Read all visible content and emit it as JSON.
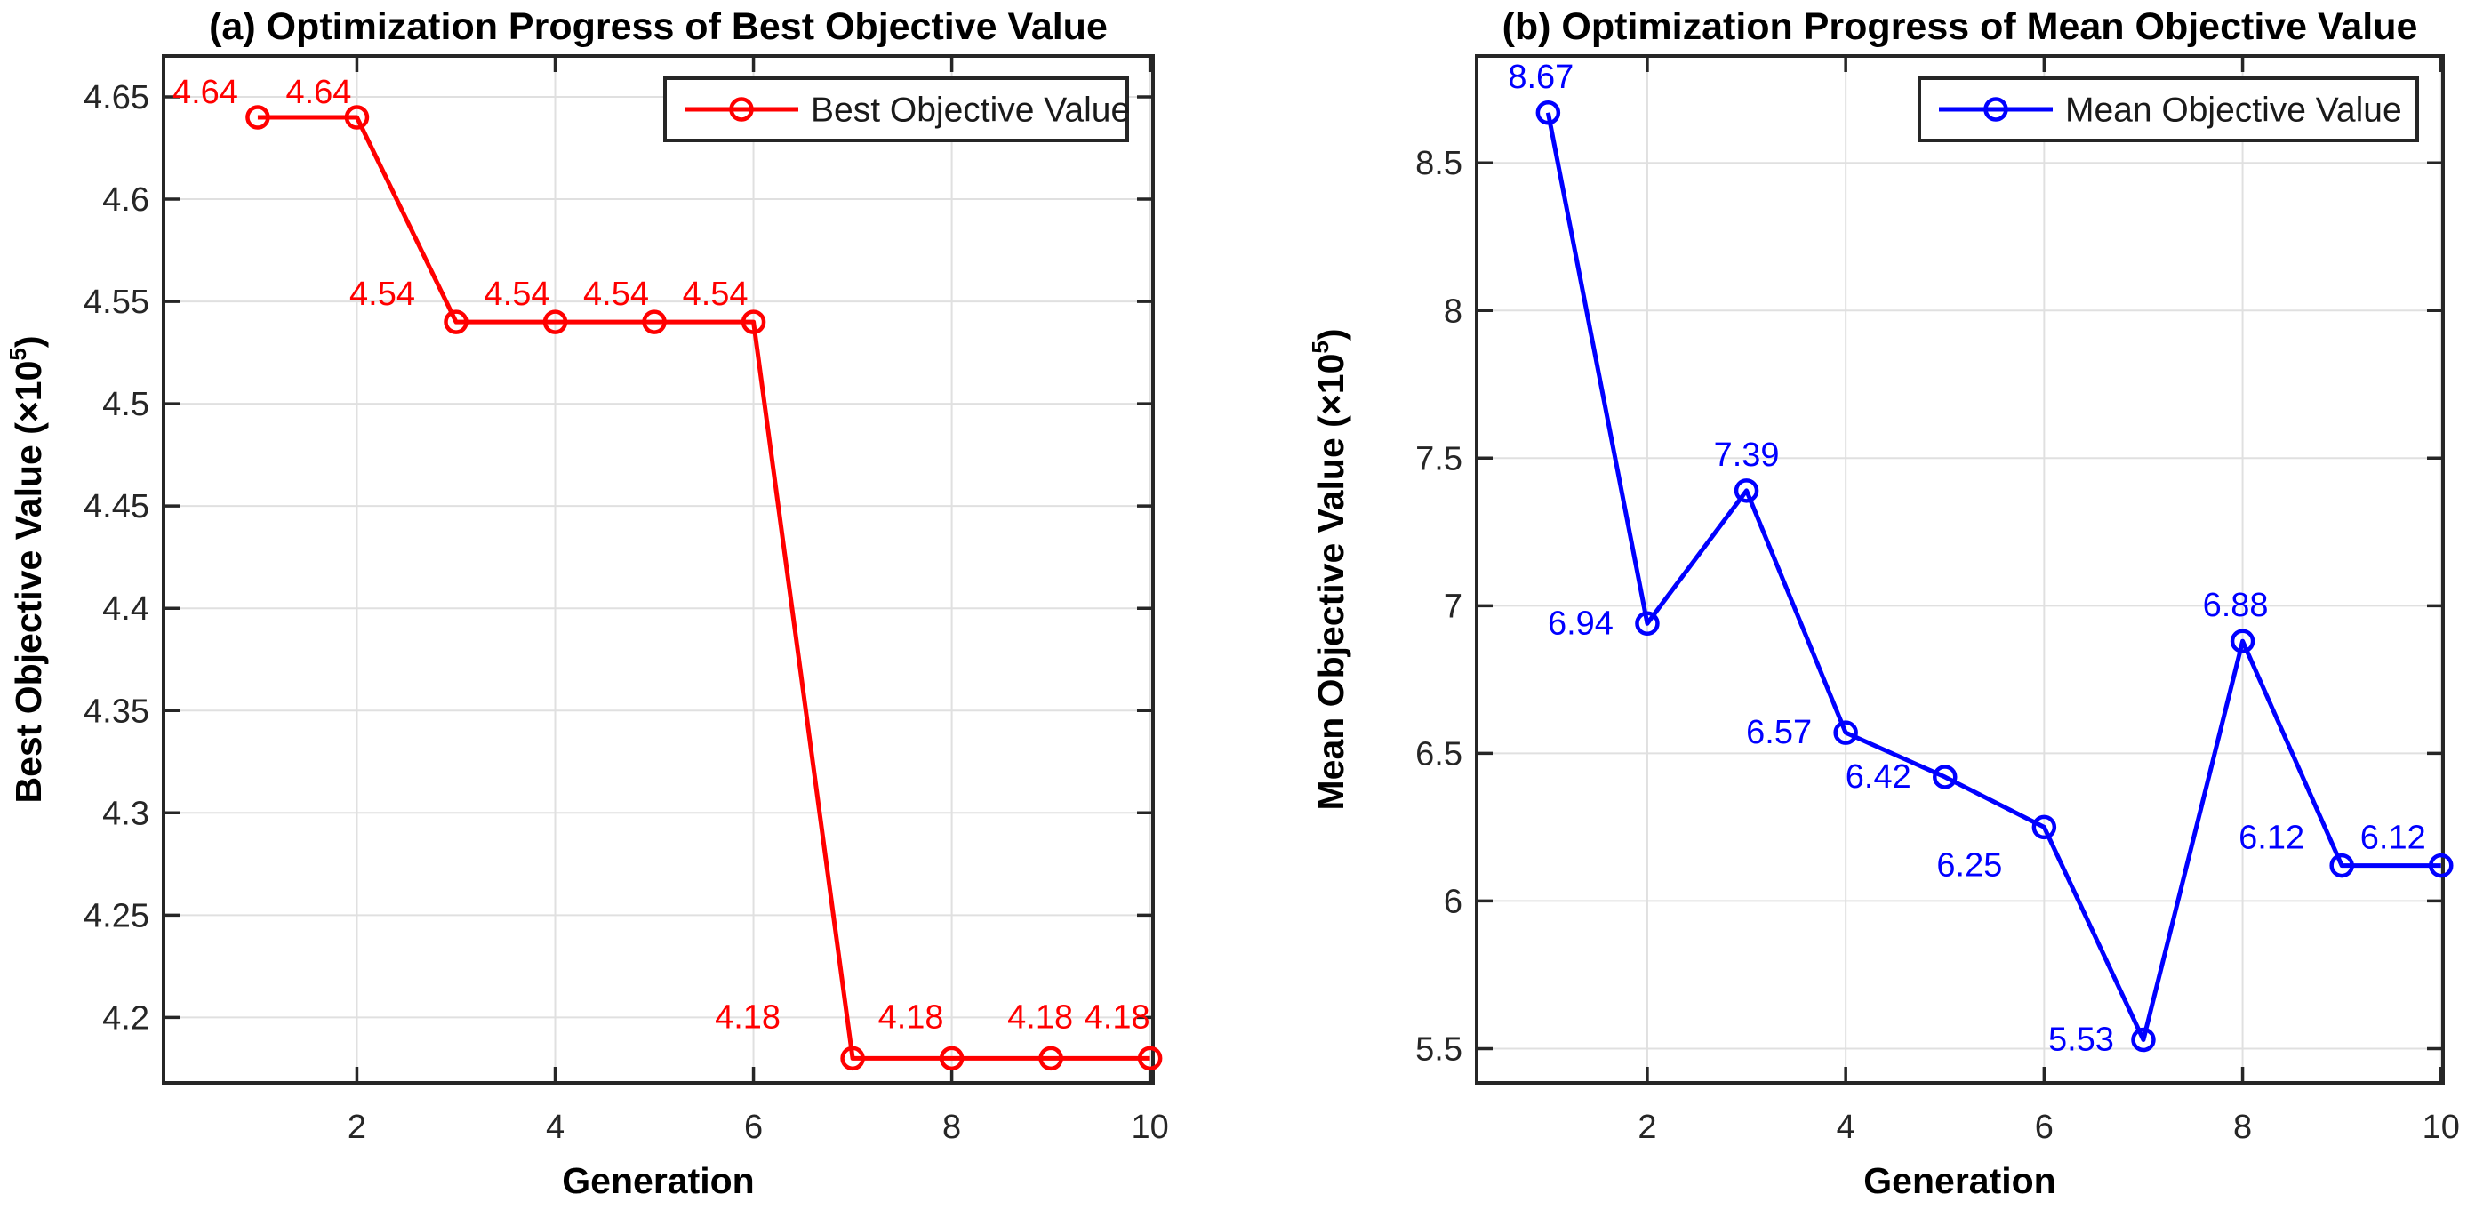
{
  "page": {
    "background": "#ffffff",
    "axis_color": "#262626",
    "grid_color": "#e0e0e0",
    "text_color": "#000000",
    "legend_text_color": "#1a1a1a"
  },
  "chart_data": [
    {
      "id": "chart-a",
      "type": "line",
      "title": "(a) Optimization Progress of Best Objective Value",
      "xlabel": "Generation",
      "ylabel_parts": {
        "pre": "Best Objective Value (×10",
        "sup": "5",
        "post": ")"
      },
      "x": [
        1,
        2,
        3,
        4,
        5,
        6,
        7,
        8,
        9,
        10
      ],
      "series": [
        {
          "name": "Best Objective Value",
          "color": "#ff0000",
          "values": [
            4.64,
            4.64,
            4.54,
            4.54,
            4.54,
            4.54,
            4.18,
            4.18,
            4.18,
            4.18
          ],
          "point_labels": [
            "4.64",
            "4.64",
            "4.54",
            "4.54",
            "4.54",
            "4.54",
            "4.18",
            "4.18",
            "4.18",
            "4.18"
          ],
          "label_offsets": [
            [
              -59,
              -16
            ],
            [
              -43,
              -16
            ],
            [
              -83,
              -19
            ],
            [
              -43,
              -19
            ],
            [
              -43,
              -19
            ],
            [
              -43,
              -19
            ],
            [
              -118,
              -34
            ],
            [
              -46,
              -34
            ],
            [
              -12,
              -34
            ],
            [
              -37,
              -34
            ]
          ]
        }
      ],
      "xticks": {
        "values": [
          2,
          4,
          6,
          8,
          10
        ],
        "labels": [
          "2",
          "4",
          "6",
          "8",
          "10"
        ]
      },
      "yticks": {
        "values": [
          4.2,
          4.25,
          4.3,
          4.35,
          4.4,
          4.45,
          4.5,
          4.55,
          4.6,
          4.65
        ],
        "labels": [
          "4.2",
          "4.25",
          "4.3",
          "4.35",
          "4.4",
          "4.45",
          "4.5",
          "4.55",
          "4.6",
          "4.65"
        ]
      },
      "xlim": [
        0.05,
        10.03
      ],
      "ylim": [
        4.168,
        4.67
      ],
      "grid": true,
      "legend": {
        "label": "Best Objective Value",
        "position": "top-right"
      }
    },
    {
      "id": "chart-b",
      "type": "line",
      "title": "(b) Optimization Progress of Mean Objective Value",
      "xlabel": "Generation",
      "ylabel_parts": {
        "pre": "Mean Objective Value (×10",
        "sup": "5",
        "post": ")"
      },
      "x": [
        1,
        2,
        3,
        4,
        5,
        6,
        7,
        8,
        9,
        10
      ],
      "series": [
        {
          "name": "Mean Objective Value",
          "color": "#0000ff",
          "values": [
            8.67,
            6.94,
            7.39,
            6.57,
            6.42,
            6.25,
            5.53,
            6.88,
            6.12,
            6.12
          ],
          "point_labels": [
            "8.67",
            "6.94",
            "7.39",
            "6.57",
            "6.42",
            "6.25",
            "5.53",
            "6.88",
            "6.12",
            "6.12"
          ],
          "label_offsets": [
            [
              -8,
              -28
            ],
            [
              -75,
              12
            ],
            [
              0,
              -28
            ],
            [
              -75,
              12
            ],
            [
              -75,
              12
            ],
            [
              -84,
              55
            ],
            [
              -70,
              12
            ],
            [
              -8,
              -28
            ],
            [
              -79,
              -19
            ],
            [
              -54,
              -19
            ]
          ]
        }
      ],
      "xticks": {
        "values": [
          2,
          4,
          6,
          8,
          10
        ],
        "labels": [
          "2",
          "4",
          "6",
          "8",
          "10"
        ]
      },
      "yticks": {
        "values": [
          5.5,
          6,
          6.5,
          7,
          7.5,
          8,
          8.5
        ],
        "labels": [
          "5.5",
          "6",
          "6.5",
          "7",
          "7.5",
          "8",
          "8.5"
        ]
      },
      "xlim": [
        0.28,
        10.02
      ],
      "ylim": [
        5.384,
        8.862
      ],
      "grid": true,
      "legend": {
        "label": "Mean Objective Value",
        "position": "top-right"
      }
    }
  ]
}
